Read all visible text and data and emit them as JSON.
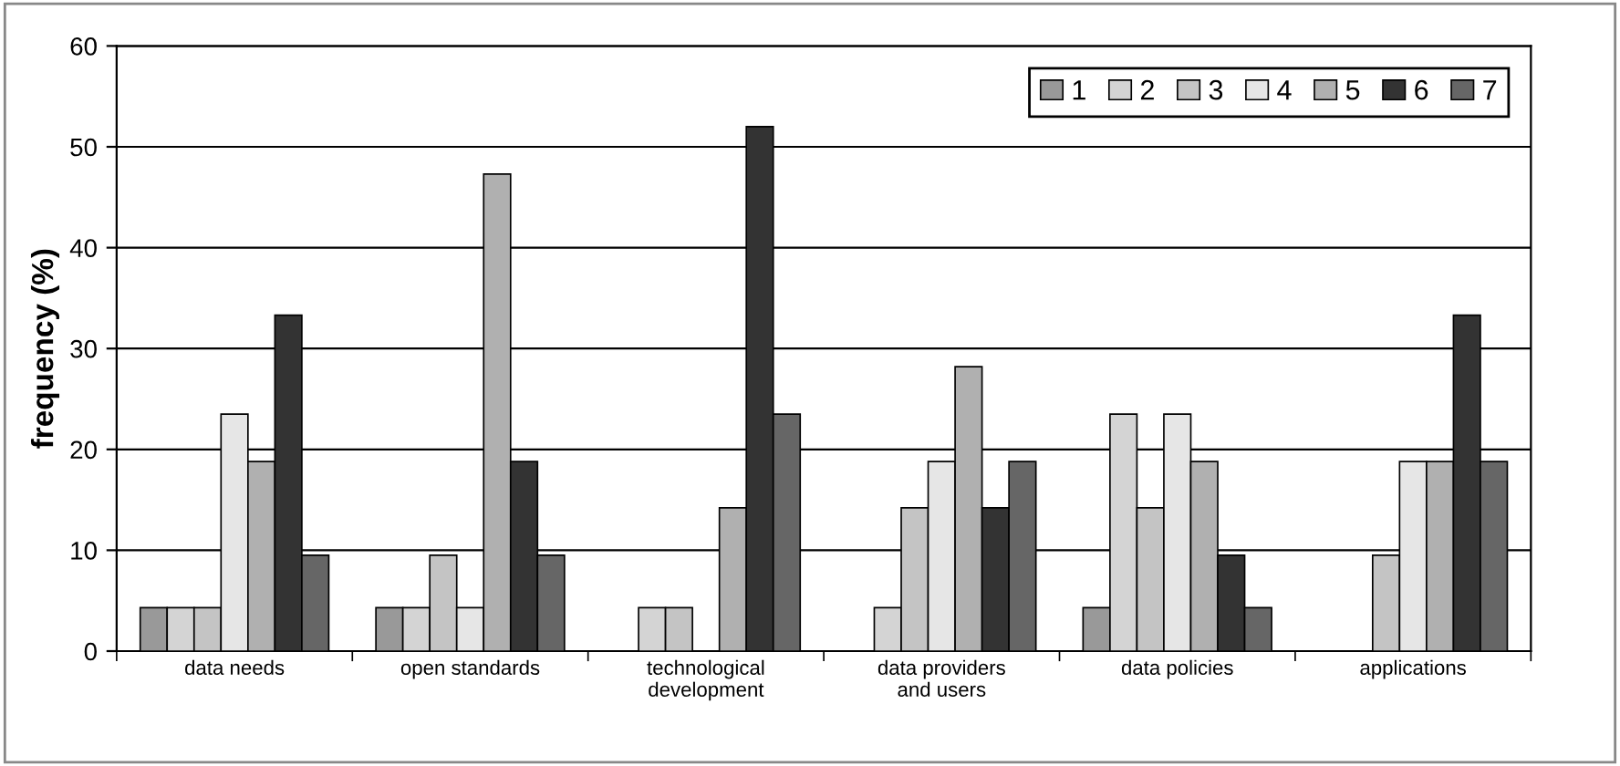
{
  "chart_data": {
    "type": "bar",
    "ylabel": "frequency (%)",
    "categories": [
      "data needs",
      "open standards",
      "technological\ndevelopment",
      "data providers\nand users",
      "data policies",
      "applications"
    ],
    "series": [
      {
        "name": "1",
        "color": "#999999",
        "values": [
          4.3,
          4.3,
          null,
          null,
          4.3,
          null
        ]
      },
      {
        "name": "2",
        "color": "#d4d4d4",
        "values": [
          4.3,
          4.3,
          4.3,
          4.3,
          23.5,
          null
        ]
      },
      {
        "name": "3",
        "color": "#c4c4c4",
        "values": [
          4.3,
          9.5,
          4.3,
          14.2,
          14.2,
          9.5
        ]
      },
      {
        "name": "4",
        "color": "#e6e6e6",
        "values": [
          23.5,
          4.3,
          null,
          18.8,
          23.5,
          18.8
        ]
      },
      {
        "name": "5",
        "color": "#b0b0b0",
        "values": [
          18.8,
          47.3,
          14.2,
          28.2,
          18.8,
          18.8
        ]
      },
      {
        "name": "6",
        "color": "#333333",
        "values": [
          33.3,
          18.8,
          52,
          14.2,
          9.5,
          33.3
        ]
      },
      {
        "name": "7",
        "color": "#666666",
        "values": [
          9.5,
          9.5,
          23.5,
          18.8,
          4.3,
          18.8
        ]
      }
    ],
    "ylim": [
      0,
      60
    ],
    "yticks": [
      0,
      10,
      20,
      30,
      40,
      50,
      60
    ],
    "grid": "y",
    "legend": "top right"
  }
}
